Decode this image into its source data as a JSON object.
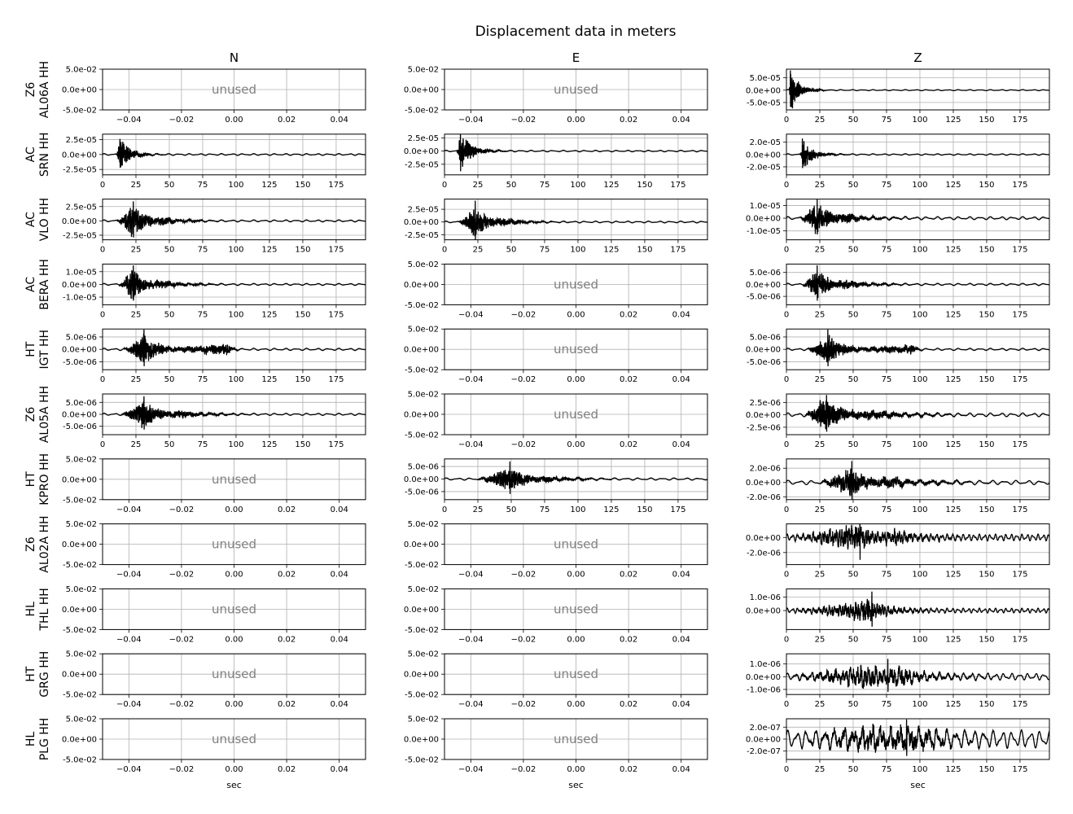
{
  "title": "Displacement data in meters",
  "columns": [
    "N",
    "E",
    "Z"
  ],
  "unused_label": "unused",
  "xlabel": "sec",
  "stations": [
    {
      "network": "Z6",
      "station": "AL06A HH",
      "label": "Z6\nAL06A HH"
    },
    {
      "network": "AC",
      "station": "SRN HH",
      "label": "AC\nSRN HH"
    },
    {
      "network": "AC",
      "station": "VLO HH",
      "label": "AC\nVLO HH"
    },
    {
      "network": "AC",
      "station": "BERA HH",
      "label": "AC\nBERA HH"
    },
    {
      "network": "HT",
      "station": "IGT HH",
      "label": "HT\nIGT HH"
    },
    {
      "network": "Z6",
      "station": "AL05A HH",
      "label": "Z6\nAL05A HH"
    },
    {
      "network": "HT",
      "station": "KPRO HH",
      "label": "HT\nKPRO HH"
    },
    {
      "network": "Z6",
      "station": "AL02A HH",
      "label": "Z6\nAL02A HH"
    },
    {
      "network": "HL",
      "station": "THL HH",
      "label": "HL\nTHL HH"
    },
    {
      "network": "HT",
      "station": "GRG HH",
      "label": "HT\nGRG HH"
    },
    {
      "network": "HL",
      "station": "PLG HH",
      "label": "HL\nPLG HH"
    }
  ],
  "unused_axis": {
    "xlim": [
      -0.05,
      0.05
    ],
    "ylim": [
      -0.05,
      0.05
    ],
    "xticks": [
      -0.04,
      -0.02,
      0.0,
      0.02,
      0.04
    ],
    "xtick_labels": [
      "−0.04",
      "−0.02",
      "0.00",
      "0.02",
      "0.04"
    ],
    "yticks": [
      0.05,
      0.0,
      -0.05
    ],
    "ytick_labels": [
      "5.0e-02",
      "0.0e+00",
      "-5.0e-02"
    ]
  },
  "chart_data": {
    "type": "line",
    "grid": true,
    "x_unit": "sec",
    "trace_color": "#000000",
    "time_xlim": [
      0,
      197
    ],
    "time_xticks": [
      0,
      25,
      50,
      75,
      100,
      125,
      150,
      175
    ],
    "time_xtick_labels": [
      "0",
      "25",
      "50",
      "75",
      "100",
      "125",
      "150",
      "175"
    ],
    "traces": [
      {
        "row": 0,
        "component": "Z",
        "ylim": [
          -8e-05,
          8.5e-05
        ],
        "yticks": [
          5e-05,
          0,
          -5e-05
        ],
        "ytick_labels": [
          "5.0e-05",
          "0.0e+00",
          "-5.0e-05"
        ],
        "arrival": 2,
        "peak_time": 3,
        "peak": 8e-05,
        "packets": [
          {
            "t": 3,
            "amp": 8e-05,
            "decay": 6
          }
        ],
        "tail": 1.5e-06,
        "tail_period": 8,
        "period": 1.0
      },
      {
        "row": 1,
        "component": "N",
        "ylim": [
          -3.4e-05,
          3.4e-05
        ],
        "yticks": [
          2.5e-05,
          0,
          -2.5e-05
        ],
        "ytick_labels": [
          "2.5e-05",
          "0.0e+00",
          "-2.5e-05"
        ],
        "arrival": 10,
        "peak_time": 13,
        "peak": 2.6e-05,
        "packets": [
          {
            "t": 13,
            "amp": 2.6e-05,
            "decay": 7
          }
        ],
        "tail": 1e-06,
        "tail_period": 8,
        "period": 1.0
      },
      {
        "row": 1,
        "component": "E",
        "ylim": [
          -4.5e-05,
          3.2e-05
        ],
        "yticks": [
          2.5e-05,
          0,
          -2.5e-05
        ],
        "ytick_labels": [
          "2.5e-05",
          "0.0e+00",
          "-2.5e-05"
        ],
        "arrival": 9,
        "peak_time": 12,
        "peak": 4.5e-05,
        "packets": [
          {
            "t": 12,
            "amp": 3.2e-05,
            "decay": 8
          }
        ],
        "tail": 1e-06,
        "tail_period": 8,
        "period": 1.0
      },
      {
        "row": 1,
        "component": "Z",
        "ylim": [
          -3.3e-05,
          3.3e-05
        ],
        "yticks": [
          2e-05,
          0,
          -2e-05
        ],
        "ytick_labels": [
          "2.0e-05",
          "0.0e+00",
          "-2.0e-05"
        ],
        "arrival": 10,
        "peak_time": 12,
        "peak": 2.6e-05,
        "packets": [
          {
            "t": 13,
            "amp": 2.2e-05,
            "decay": 7
          }
        ],
        "tail": 8e-07,
        "tail_period": 8,
        "period": 1.0
      },
      {
        "row": 2,
        "component": "N",
        "ylim": [
          -3.3e-05,
          3.8e-05
        ],
        "yticks": [
          2.5e-05,
          0,
          -2.5e-05
        ],
        "ytick_labels": [
          "2.5e-05",
          "0.0e+00",
          "-2.5e-05"
        ],
        "arrival": 10,
        "peak_time": 23,
        "peak": 3.4e-05,
        "packets": [
          {
            "t": 22,
            "amp": 2.4e-05,
            "decay": 12
          },
          {
            "t": 45,
            "amp": 7e-06,
            "decay": 12
          }
        ],
        "tail": 1.2e-06,
        "tail_period": 8,
        "period": 1.1
      },
      {
        "row": 2,
        "component": "E",
        "ylim": [
          -3.5e-05,
          4.5e-05
        ],
        "yticks": [
          2.5e-05,
          0,
          -2.5e-05
        ],
        "ytick_labels": [
          "2.5e-05",
          "0.0e+00",
          "-2.5e-05"
        ],
        "arrival": 10,
        "peak_time": 23,
        "peak": 4.2e-05,
        "packets": [
          {
            "t": 22,
            "amp": 2.6e-05,
            "decay": 12
          },
          {
            "t": 45,
            "amp": 8e-06,
            "decay": 12
          }
        ],
        "tail": 1.2e-06,
        "tail_period": 8,
        "period": 1.1
      },
      {
        "row": 2,
        "component": "Z",
        "ylim": [
          -1.7e-05,
          1.5e-05
        ],
        "yticks": [
          1e-05,
          0,
          -1e-05
        ],
        "ytick_labels": [
          "1.0e-05",
          "0.0e+00",
          "-1.0e-05"
        ],
        "arrival": 10,
        "peak_time": 23,
        "peak": 1.5e-05,
        "packets": [
          {
            "t": 22,
            "amp": 1.1e-05,
            "decay": 13
          },
          {
            "t": 45,
            "amp": 3.5e-06,
            "decay": 14
          }
        ],
        "tail": 8e-07,
        "tail_period": 8,
        "period": 1.1
      },
      {
        "row": 3,
        "component": "N",
        "ylim": [
          -1.6e-05,
          1.6e-05
        ],
        "yticks": [
          1e-05,
          0,
          -1e-05
        ],
        "ytick_labels": [
          "1.0e-05",
          "0.0e+00",
          "-1.0e-05"
        ],
        "arrival": 12,
        "peak_time": 23,
        "peak": 1.5e-05,
        "packets": [
          {
            "t": 22,
            "amp": 1.1e-05,
            "decay": 12
          },
          {
            "t": 45,
            "amp": 3e-06,
            "decay": 14
          }
        ],
        "tail": 5e-07,
        "tail_period": 8,
        "period": 1.1
      },
      {
        "row": 3,
        "component": "Z",
        "ylim": [
          -8.5e-06,
          8.5e-06
        ],
        "yticks": [
          5e-06,
          0,
          -5e-06
        ],
        "ytick_labels": [
          "5.0e-06",
          "0.0e+00",
          "-5.0e-06"
        ],
        "arrival": 12,
        "peak_time": 23,
        "peak": 8e-06,
        "packets": [
          {
            "t": 22,
            "amp": 5.5e-06,
            "decay": 12
          },
          {
            "t": 45,
            "amp": 1.8e-06,
            "decay": 14
          }
        ],
        "tail": 3e-07,
        "tail_period": 8,
        "period": 1.1
      },
      {
        "row": 4,
        "component": "N",
        "ylim": [
          -8.2e-06,
          8.2e-06
        ],
        "yticks": [
          5e-06,
          0,
          -5e-06
        ],
        "ytick_labels": [
          "5.0e-06",
          "0.0e+00",
          "-5.0e-06"
        ],
        "arrival": 15,
        "peak_time": 31,
        "peak": 8e-06,
        "packets": [
          {
            "t": 31,
            "amp": 5.5e-06,
            "decay": 12
          },
          {
            "t": 94,
            "amp": 2e-06,
            "decay": 2.5
          }
        ],
        "tail": 3e-07,
        "tail_period": 8,
        "period": 1.1
      },
      {
        "row": 4,
        "component": "Z",
        "ylim": [
          -8.2e-06,
          8.2e-06
        ],
        "yticks": [
          5e-06,
          0,
          -5e-06
        ],
        "ytick_labels": [
          "5.0e-06",
          "0.0e+00",
          "-5.0e-06"
        ],
        "arrival": 15,
        "peak_time": 31,
        "peak": 8e-06,
        "packets": [
          {
            "t": 31,
            "amp": 5.5e-06,
            "decay": 12
          },
          {
            "t": 94,
            "amp": 1.6e-06,
            "decay": 2.5
          }
        ],
        "tail": 3e-07,
        "tail_period": 8,
        "period": 1.1
      },
      {
        "row": 5,
        "component": "N",
        "ylim": [
          -8.5e-06,
          8.5e-06
        ],
        "yticks": [
          5e-06,
          0,
          -5e-06
        ],
        "ytick_labels": [
          "5.0e-06",
          "0.0e+00",
          "-5.0e-06"
        ],
        "arrival": 13,
        "peak_time": 31,
        "peak": 7.5e-06,
        "packets": [
          {
            "t": 30,
            "amp": 5e-06,
            "decay": 13
          },
          {
            "t": 60,
            "amp": 1.5e-06,
            "decay": 15
          }
        ],
        "tail": 3e-07,
        "tail_period": 8,
        "period": 1.1
      },
      {
        "row": 5,
        "component": "Z",
        "ylim": [
          -4e-06,
          4.2e-06
        ],
        "yticks": [
          2.5e-06,
          0,
          -2.5e-06
        ],
        "ytick_labels": [
          "2.5e-06",
          "0.0e+00",
          "-2.5e-06"
        ],
        "arrival": 13,
        "peak_time": 30,
        "peak": 4e-06,
        "packets": [
          {
            "t": 28,
            "amp": 3e-06,
            "decay": 15
          },
          {
            "t": 65,
            "amp": 9e-07,
            "decay": 20
          }
        ],
        "tail": 2.5e-07,
        "tail_period": 8,
        "period": 1.1
      },
      {
        "row": 6,
        "component": "E",
        "ylim": [
          -8.2e-06,
          8e-06
        ],
        "yticks": [
          5e-06,
          0,
          -5e-06
        ],
        "ytick_labels": [
          "5.0e-06",
          "0.0e+00",
          "-5.0e-06"
        ],
        "arrival": 24,
        "peak_time": 49,
        "peak": 7e-06,
        "packets": [
          {
            "t": 48,
            "amp": 4.5e-06,
            "decay": 14
          },
          {
            "t": 75,
            "amp": 1.3e-06,
            "decay": 16
          }
        ],
        "tail": 3e-07,
        "tail_period": 9,
        "period": 1.2
      },
      {
        "row": 6,
        "component": "Z",
        "ylim": [
          -2.4e-06,
          3.3e-06
        ],
        "yticks": [
          2e-06,
          0,
          -2e-06
        ],
        "ytick_labels": [
          "2.0e-06",
          "0.0e+00",
          "-2.0e-06"
        ],
        "arrival": 24,
        "peak_time": 49,
        "peak": 3e-06,
        "packets": [
          {
            "t": 48,
            "amp": 1.8e-06,
            "decay": 14
          },
          {
            "t": 80,
            "amp": 7e-07,
            "decay": 20
          }
        ],
        "tail": 2e-07,
        "tail_period": 9,
        "period": 1.3
      },
      {
        "row": 7,
        "component": "Z",
        "ylim": [
          -3.6e-06,
          1.8e-06
        ],
        "yticks": [
          0,
          -2e-06
        ],
        "ytick_labels": [
          "0.0e+00",
          "-2.0e-06"
        ],
        "arrival": 0,
        "peak_time": 55,
        "peak": 3.5e-06,
        "packets": [
          {
            "t": 50,
            "amp": 1.5e-06,
            "decay": 20
          },
          {
            "t": 80,
            "amp": 8e-07,
            "decay": 20
          }
        ],
        "tail": 3e-07,
        "tail_period": 4,
        "period": 1.8
      },
      {
        "row": 8,
        "component": "Z",
        "ylim": [
          -1.4e-06,
          1.6e-06
        ],
        "yticks": [
          1e-06,
          0
        ],
        "ytick_labels": [
          "1.0e-06",
          "0.0e+00"
        ],
        "arrival": 0,
        "peak_time": 64,
        "peak": 1.4e-06,
        "packets": [
          {
            "t": 62,
            "amp": 7e-07,
            "decay": 15
          },
          {
            "t": 45,
            "amp": 4e-07,
            "decay": 12
          }
        ],
        "tail": 1.2e-07,
        "tail_period": 4,
        "period": 2.0
      },
      {
        "row": 9,
        "component": "Z",
        "ylim": [
          -1.4e-06,
          1.8e-06
        ],
        "yticks": [
          1e-06,
          0,
          -1e-06
        ],
        "ytick_labels": [
          "1.0e-06",
          "0.0e+00",
          "-1.0e-06"
        ],
        "arrival": 0,
        "peak_time": 76,
        "peak": 1.4e-06,
        "packets": [
          {
            "t": 60,
            "amp": 8e-07,
            "decay": 25
          },
          {
            "t": 85,
            "amp": 6e-07,
            "decay": 20
          }
        ],
        "tail": 1.8e-07,
        "tail_period": 6,
        "period": 2.8
      },
      {
        "row": 10,
        "component": "Z",
        "ylim": [
          -3.4e-07,
          3.4e-07
        ],
        "yticks": [
          2e-07,
          0,
          -2e-07
        ],
        "ytick_labels": [
          "2.0e-07",
          "0.0e+00",
          "-2.0e-07"
        ],
        "arrival": 0,
        "peak_time": 90,
        "peak": 3.3e-07,
        "packets": [
          {
            "t": 65,
            "amp": 1.5e-07,
            "decay": 30
          },
          {
            "t": 95,
            "amp": 1.5e-07,
            "decay": 25
          }
        ],
        "tail": 1e-07,
        "tail_period": 7,
        "period": 2.6
      }
    ]
  }
}
